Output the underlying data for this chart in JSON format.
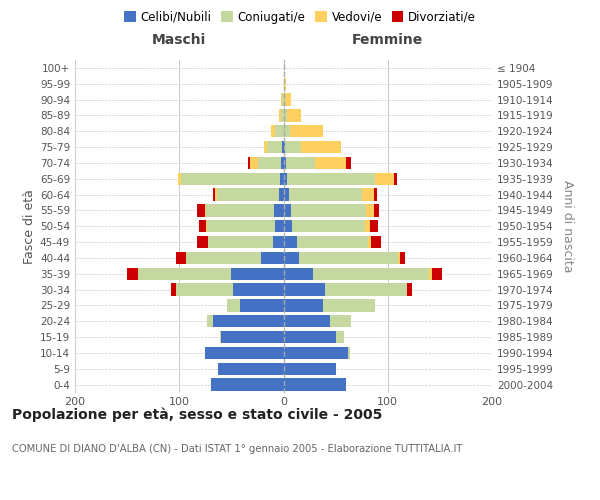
{
  "age_groups": [
    "0-4",
    "5-9",
    "10-14",
    "15-19",
    "20-24",
    "25-29",
    "30-34",
    "35-39",
    "40-44",
    "45-49",
    "50-54",
    "55-59",
    "60-64",
    "65-69",
    "70-74",
    "75-79",
    "80-84",
    "85-89",
    "90-94",
    "95-99",
    "100+"
  ],
  "birth_years": [
    "2000-2004",
    "1995-1999",
    "1990-1994",
    "1985-1989",
    "1980-1984",
    "1975-1979",
    "1970-1974",
    "1965-1969",
    "1960-1964",
    "1955-1959",
    "1950-1954",
    "1945-1949",
    "1940-1944",
    "1935-1939",
    "1930-1934",
    "1925-1929",
    "1920-1924",
    "1915-1919",
    "1910-1914",
    "1905-1909",
    "≤ 1904"
  ],
  "maschi": {
    "celibi": [
      70,
      63,
      75,
      60,
      68,
      42,
      48,
      50,
      22,
      10,
      8,
      9,
      4,
      3,
      2,
      1,
      0,
      0,
      0,
      0,
      0
    ],
    "coniugati": [
      0,
      0,
      0,
      1,
      5,
      12,
      55,
      90,
      72,
      62,
      65,
      65,
      60,
      95,
      22,
      15,
      8,
      2,
      1,
      0,
      0
    ],
    "vedovi": [
      0,
      0,
      0,
      0,
      0,
      0,
      0,
      0,
      0,
      0,
      1,
      1,
      2,
      3,
      8,
      3,
      4,
      2,
      1,
      0,
      0
    ],
    "divorziati": [
      0,
      0,
      0,
      0,
      0,
      0,
      5,
      10,
      9,
      11,
      7,
      8,
      2,
      0,
      2,
      0,
      0,
      0,
      0,
      0,
      0
    ]
  },
  "femmine": {
    "nubili": [
      60,
      50,
      62,
      50,
      45,
      38,
      40,
      28,
      15,
      13,
      8,
      7,
      5,
      3,
      2,
      1,
      0,
      0,
      0,
      0,
      0
    ],
    "coniugate": [
      0,
      0,
      2,
      8,
      20,
      50,
      78,
      112,
      95,
      68,
      70,
      72,
      70,
      85,
      28,
      16,
      6,
      3,
      1,
      0,
      0
    ],
    "vedove": [
      0,
      0,
      0,
      0,
      0,
      0,
      0,
      2,
      2,
      3,
      5,
      8,
      12,
      18,
      30,
      38,
      32,
      14,
      6,
      2,
      0
    ],
    "divorziate": [
      0,
      0,
      0,
      0,
      0,
      0,
      5,
      10,
      5,
      10,
      8,
      5,
      3,
      3,
      5,
      0,
      0,
      0,
      0,
      0,
      0
    ]
  },
  "colors": {
    "celibi_nubili": "#4472C4",
    "coniugati": "#C5D8A0",
    "vedovi": "#FFD060",
    "divorziati": "#CC0000"
  },
  "title": "Popolazione per età, sesso e stato civile - 2005",
  "subtitle": "COMUNE DI DIANO D'ALBA (CN) - Dati ISTAT 1° gennaio 2005 - Elaborazione TUTTITALIA.IT",
  "xlabel_maschi": "Maschi",
  "xlabel_femmine": "Femmine",
  "ylabel_left": "Fasce di età",
  "ylabel_right": "Anni di nascita",
  "xlim": 200,
  "background_color": "#ffffff",
  "grid_color": "#cccccc"
}
